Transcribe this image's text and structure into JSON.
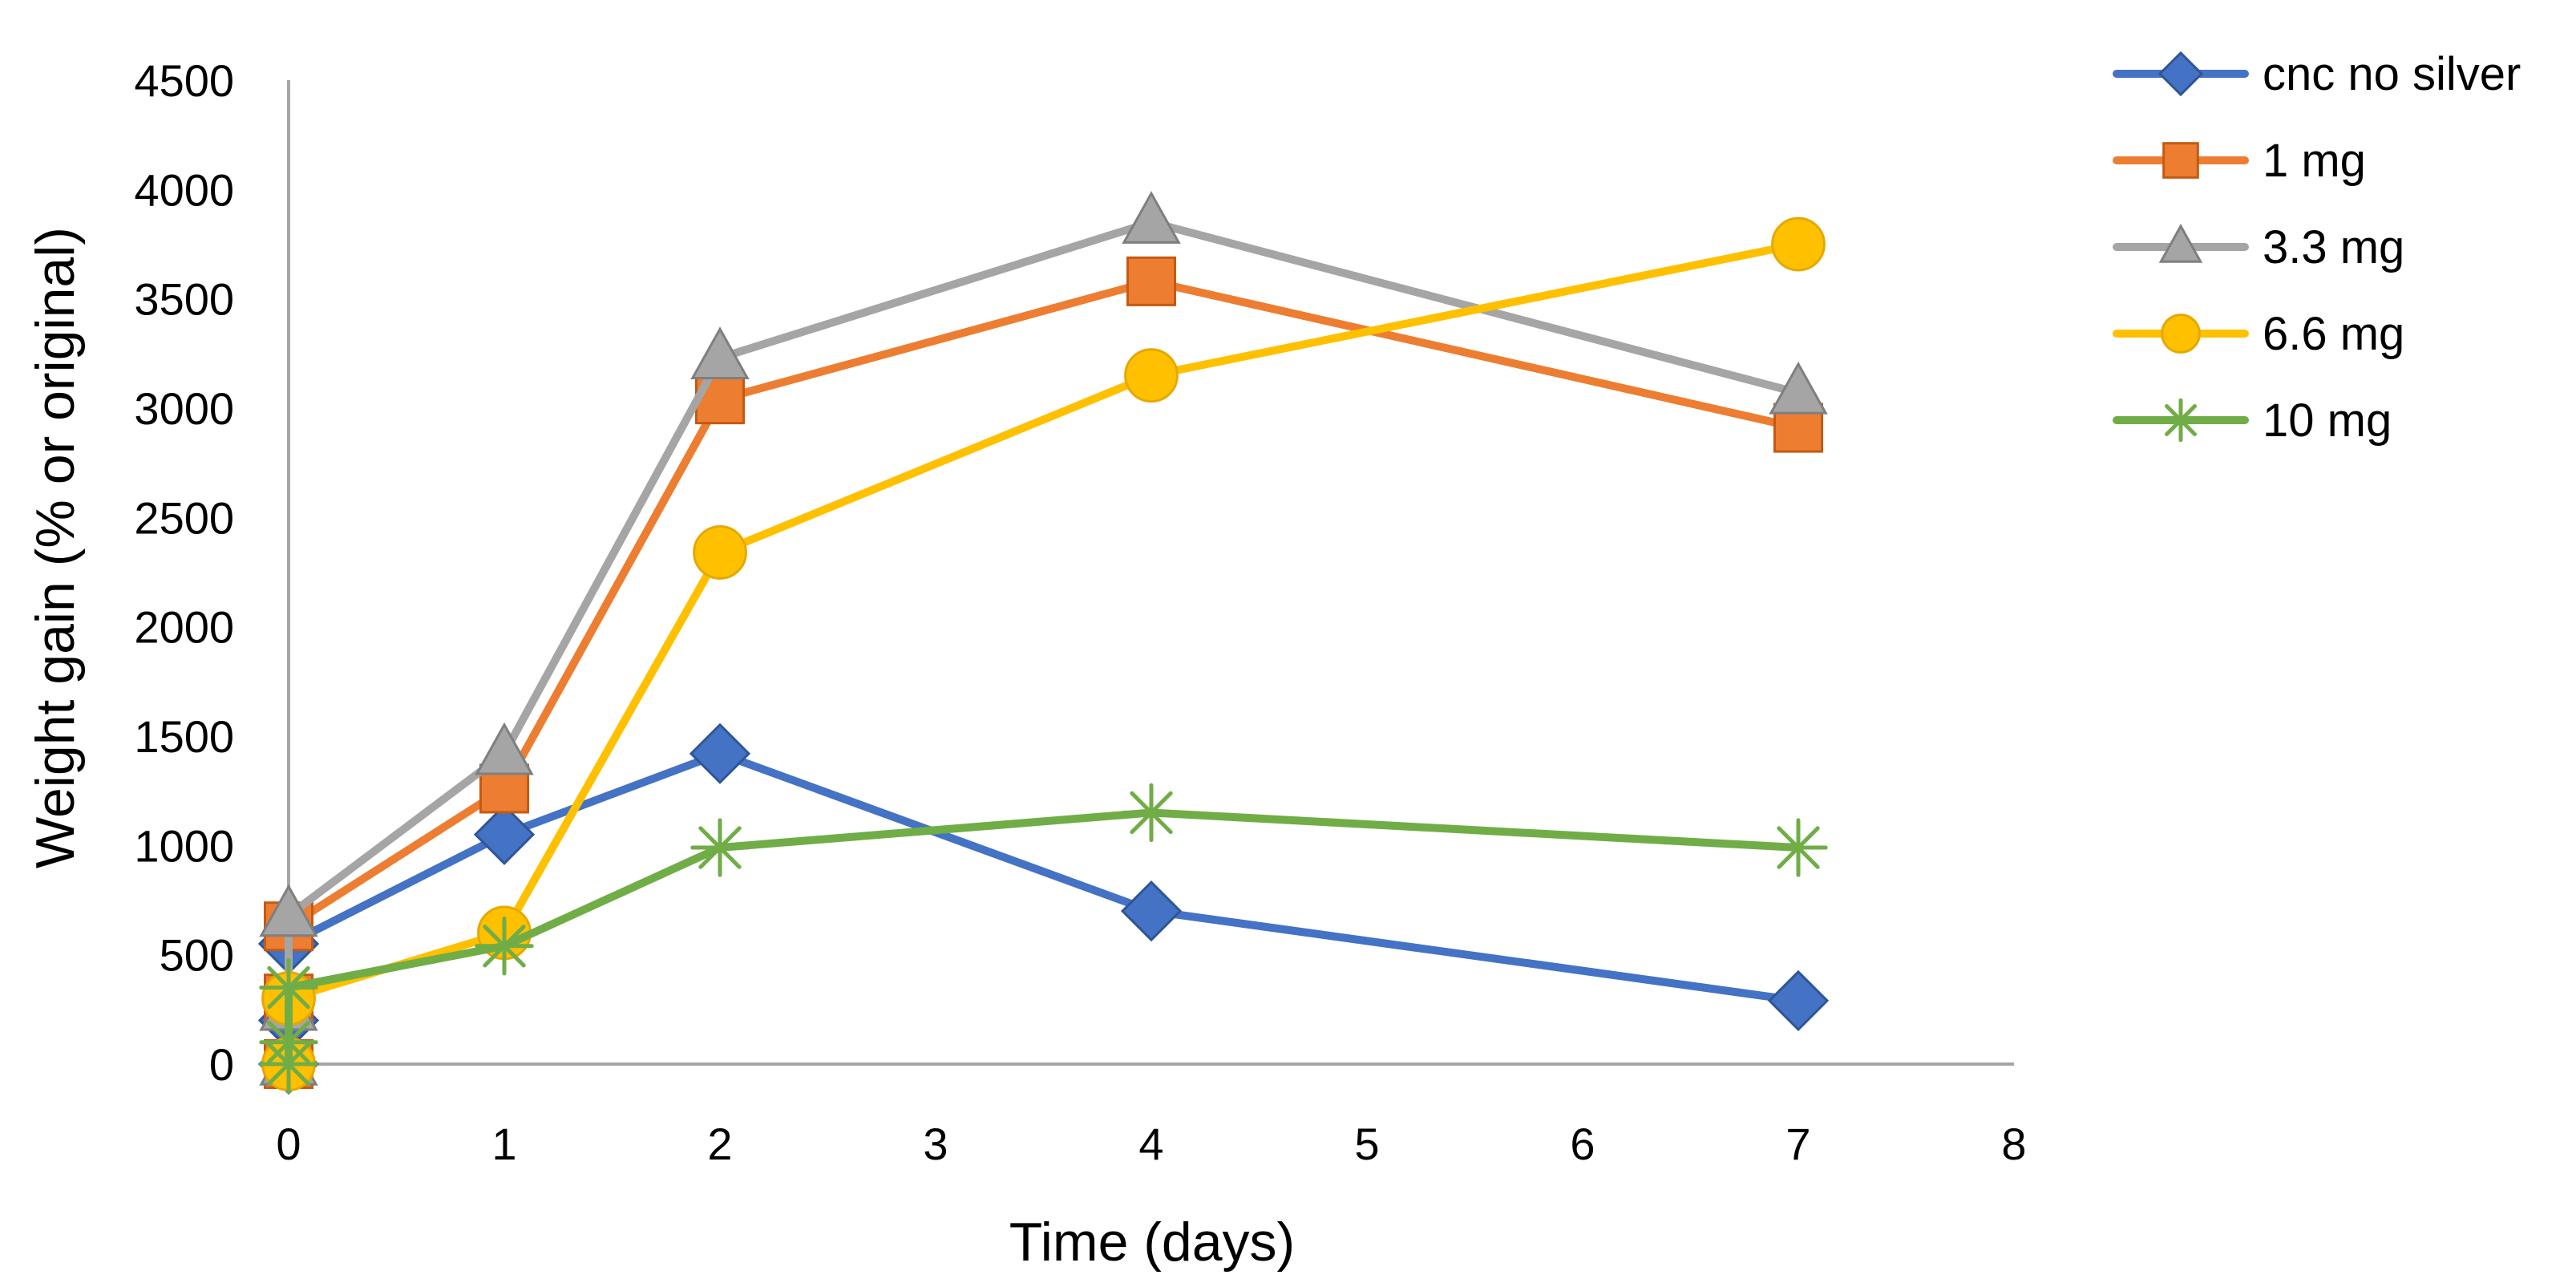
{
  "chart_data": {
    "type": "scatter",
    "title": "",
    "xlabel": "Time (days)",
    "ylabel": "Weight gain (% or original)",
    "xlim": [
      0,
      8
    ],
    "ylim": [
      0,
      4500
    ],
    "xticks": [
      0,
      1,
      2,
      3,
      4,
      5,
      6,
      7,
      8
    ],
    "yticks": [
      0,
      500,
      1000,
      1500,
      2000,
      2500,
      3000,
      3500,
      4000,
      4500
    ],
    "grid": false,
    "legend_position": "top-right",
    "series": [
      {
        "name": "cnc no silver",
        "color": "#4472C4",
        "marker": "diamond",
        "points": [
          [
            0,
            0
          ],
          [
            0,
            200
          ],
          [
            0,
            550
          ],
          [
            1,
            1050
          ],
          [
            2,
            1420
          ],
          [
            4,
            700
          ],
          [
            7,
            290
          ]
        ]
      },
      {
        "name": "1 mg",
        "color": "#ED7D31",
        "marker": "square",
        "points": [
          [
            0,
            0
          ],
          [
            0,
            300
          ],
          [
            0,
            630
          ],
          [
            1,
            1260
          ],
          [
            2,
            3040
          ],
          [
            4,
            3580
          ],
          [
            7,
            2910
          ]
        ]
      },
      {
        "name": "3.3 mg",
        "color": "#A5A5A5",
        "marker": "triangle",
        "points": [
          [
            0,
            0
          ],
          [
            0,
            250
          ],
          [
            0,
            680
          ],
          [
            1,
            1420
          ],
          [
            2,
            3230
          ],
          [
            4,
            3850
          ],
          [
            7,
            3070
          ]
        ]
      },
      {
        "name": "6.6 mg",
        "color": "#FFC000",
        "marker": "circle",
        "points": [
          [
            0,
            0
          ],
          [
            0,
            300
          ],
          [
            1,
            600
          ],
          [
            2,
            2340
          ],
          [
            4,
            3150
          ],
          [
            7,
            3750
          ]
        ]
      },
      {
        "name": "10 mg",
        "color": "#70AD47",
        "marker": "star",
        "points": [
          [
            0,
            0
          ],
          [
            0,
            100
          ],
          [
            0,
            350
          ],
          [
            1,
            540
          ],
          [
            2,
            990
          ],
          [
            4,
            1150
          ],
          [
            7,
            990
          ]
        ]
      }
    ]
  }
}
